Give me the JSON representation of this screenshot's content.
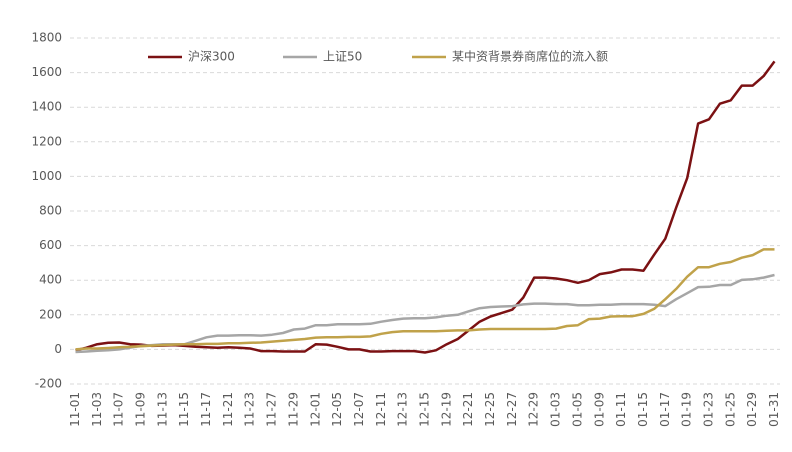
{
  "chart_data": {
    "type": "line",
    "categories": [
      "11-01",
      null,
      "11-03",
      null,
      "11-07",
      null,
      "11-09",
      null,
      "11-13",
      null,
      "11-15",
      null,
      "11-17",
      null,
      "11-21",
      null,
      "11-23",
      null,
      "11-27",
      null,
      "11-29",
      null,
      "12-01",
      null,
      "12-05",
      null,
      "12-07",
      null,
      "12-11",
      null,
      "12-13",
      null,
      "12-15",
      null,
      "12-19",
      null,
      "12-21",
      null,
      "12-25",
      null,
      "12-27",
      null,
      "12-29",
      null,
      "01-03",
      null,
      "01-05",
      null,
      "01-09",
      null,
      "01-11",
      null,
      "01-15",
      null,
      "01-17",
      null,
      "01-19",
      null,
      "01-23",
      null,
      "01-25",
      null,
      "01-29",
      null,
      "01-31"
    ],
    "series": [
      {
        "name": "沪深300",
        "color": "#7b1113",
        "values": [
          -5,
          10,
          30,
          38,
          40,
          30,
          28,
          20,
          22,
          25,
          20,
          15,
          12,
          10,
          12,
          10,
          5,
          -10,
          -10,
          -12,
          -12,
          -12,
          30,
          28,
          15,
          0,
          0,
          -12,
          -12,
          -10,
          -10,
          -10,
          -18,
          -5,
          30,
          60,
          110,
          160,
          190,
          210,
          230,
          300,
          415,
          415,
          410,
          400,
          385,
          400,
          435,
          445,
          462,
          462,
          455,
          550,
          640,
          820,
          990,
          1305,
          1330,
          1420,
          1440,
          1525,
          1525,
          1580,
          1665
        ]
      },
      {
        "name": "上证50",
        "color": "#a6a6a6",
        "values": [
          -15,
          -12,
          -8,
          -5,
          0,
          10,
          20,
          25,
          30,
          30,
          30,
          50,
          70,
          80,
          80,
          82,
          82,
          80,
          85,
          95,
          115,
          120,
          140,
          140,
          145,
          145,
          145,
          148,
          160,
          170,
          178,
          180,
          180,
          185,
          195,
          200,
          220,
          238,
          245,
          248,
          250,
          260,
          265,
          265,
          262,
          262,
          255,
          255,
          258,
          258,
          262,
          262,
          262,
          258,
          250,
          290,
          325,
          360,
          362,
          372,
          372,
          402,
          405,
          415,
          430
        ]
      },
      {
        "name": "某中资背景券商席位的流入额",
        "color": "#c0a24a",
        "values": [
          0,
          5,
          5,
          8,
          12,
          15,
          18,
          22,
          25,
          28,
          30,
          30,
          32,
          32,
          35,
          35,
          38,
          40,
          45,
          50,
          55,
          60,
          68,
          70,
          70,
          72,
          72,
          75,
          90,
          100,
          105,
          105,
          105,
          105,
          108,
          110,
          110,
          115,
          118,
          118,
          118,
          118,
          118,
          118,
          120,
          135,
          140,
          175,
          178,
          190,
          192,
          192,
          205,
          235,
          290,
          350,
          420,
          475,
          475,
          495,
          505,
          530,
          545,
          578,
          578
        ]
      }
    ],
    "ylim": [
      -200,
      1800
    ],
    "yticks": [
      -200,
      0,
      200,
      400,
      600,
      800,
      1000,
      1200,
      1400,
      1600,
      1800
    ],
    "grid": true,
    "legend": "top"
  }
}
